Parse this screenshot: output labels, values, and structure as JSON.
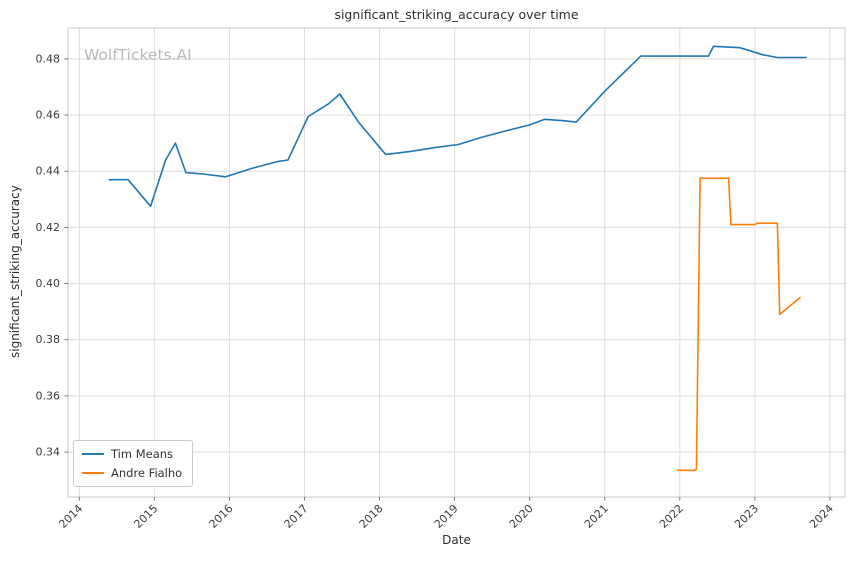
{
  "chart_data": {
    "type": "line",
    "title": "significant_striking_accuracy over time",
    "watermark": "WolfTickets.AI",
    "xlabel": "Date",
    "ylabel": "significant_striking_accuracy",
    "grid": true,
    "legend_position": "lower left",
    "grid_color": "#dcdcdc",
    "border_color": "#c9c9c9",
    "tick_color": "#555555",
    "xlim": [
      2013.85,
      2024.2
    ],
    "ylim": [
      0.324,
      0.491
    ],
    "x_ticks": [
      2014,
      2015,
      2016,
      2017,
      2018,
      2019,
      2020,
      2021,
      2022,
      2023,
      2024
    ],
    "y_ticks": [
      0.34,
      0.36,
      0.38,
      0.4,
      0.42,
      0.44,
      0.46,
      0.48
    ],
    "series": [
      {
        "name": "Tim Means",
        "color": "#1f77b4",
        "points": [
          [
            2014.4,
            0.437
          ],
          [
            2014.65,
            0.437
          ],
          [
            2014.95,
            0.4275
          ],
          [
            2015.15,
            0.444
          ],
          [
            2015.28,
            0.45
          ],
          [
            2015.42,
            0.4395
          ],
          [
            2015.65,
            0.439
          ],
          [
            2015.95,
            0.438
          ],
          [
            2016.3,
            0.441
          ],
          [
            2016.65,
            0.4435
          ],
          [
            2016.78,
            0.444
          ],
          [
            2017.05,
            0.4595
          ],
          [
            2017.2,
            0.462
          ],
          [
            2017.32,
            0.464
          ],
          [
            2017.47,
            0.4675
          ],
          [
            2017.72,
            0.4575
          ],
          [
            2018.08,
            0.446
          ],
          [
            2018.4,
            0.447
          ],
          [
            2018.75,
            0.4485
          ],
          [
            2019.05,
            0.4495
          ],
          [
            2019.35,
            0.452
          ],
          [
            2019.7,
            0.4545
          ],
          [
            2020.0,
            0.4565
          ],
          [
            2020.2,
            0.4585
          ],
          [
            2020.45,
            0.458
          ],
          [
            2020.62,
            0.4575
          ],
          [
            2021.0,
            0.4685
          ],
          [
            2021.48,
            0.481
          ],
          [
            2021.8,
            0.481
          ],
          [
            2022.1,
            0.481
          ],
          [
            2022.38,
            0.481
          ],
          [
            2022.45,
            0.4845
          ],
          [
            2022.8,
            0.484
          ],
          [
            2023.1,
            0.4815
          ],
          [
            2023.3,
            0.4805
          ],
          [
            2023.68,
            0.4805
          ]
        ]
      },
      {
        "name": "Andre Fialho",
        "color": "#ff7f0e",
        "points": [
          [
            2021.97,
            0.3335
          ],
          [
            2022.2,
            0.3335
          ],
          [
            2022.22,
            0.334
          ],
          [
            2022.27,
            0.4375
          ],
          [
            2022.65,
            0.4375
          ],
          [
            2022.68,
            0.421
          ],
          [
            2023.0,
            0.421
          ],
          [
            2023.03,
            0.4215
          ],
          [
            2023.3,
            0.4215
          ],
          [
            2023.33,
            0.389
          ],
          [
            2023.6,
            0.395
          ]
        ]
      }
    ]
  }
}
